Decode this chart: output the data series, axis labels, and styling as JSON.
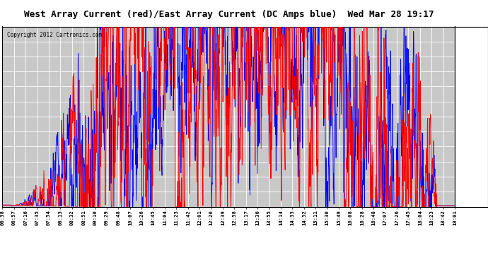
{
  "title": "West Array Current (red)/East Array Current (DC Amps blue)  Wed Mar 28 19:17",
  "copyright": "Copyright 2012 Cartronics.com",
  "ylim": [
    0.0,
    9.05
  ],
  "yticks": [
    0.0,
    0.75,
    1.51,
    2.26,
    3.02,
    3.77,
    4.53,
    5.28,
    6.04,
    6.79,
    7.54,
    8.3,
    9.05
  ],
  "bg_color": "#c8c8c8",
  "plot_bg_color": "#c8c8c8",
  "grid_color": "#ffffff",
  "title_bg_color": "#ffffff",
  "x_labels": [
    "06:38",
    "06:57",
    "07:16",
    "07:35",
    "07:54",
    "08:13",
    "08:32",
    "08:51",
    "09:10",
    "09:29",
    "09:48",
    "10:07",
    "10:26",
    "10:45",
    "11:04",
    "11:23",
    "11:42",
    "12:01",
    "12:20",
    "12:39",
    "12:58",
    "13:17",
    "13:36",
    "13:55",
    "14:14",
    "14:33",
    "14:52",
    "15:11",
    "15:30",
    "15:49",
    "16:08",
    "16:28",
    "16:48",
    "17:07",
    "17:26",
    "17:45",
    "18:04",
    "18:23",
    "18:42",
    "19:01"
  ],
  "n_points": 2000
}
